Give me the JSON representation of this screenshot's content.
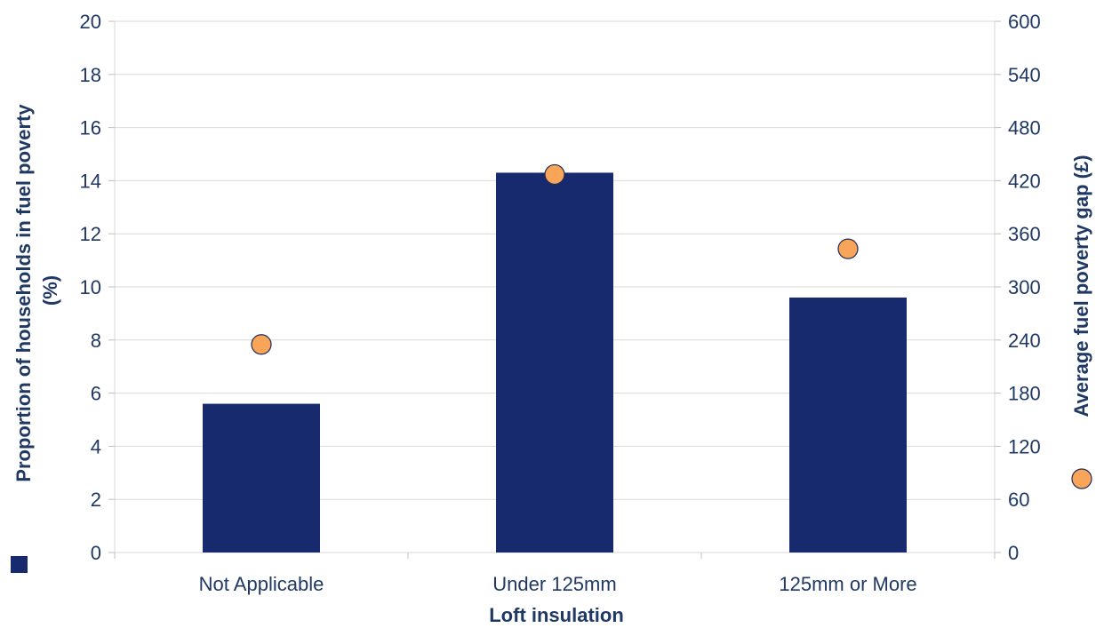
{
  "chart_data": {
    "type": "bar",
    "categories": [
      "Not Applicable",
      "Under 125mm",
      "125mm or More"
    ],
    "series": [
      {
        "values": [
          5.6,
          14.3,
          9.6
        ],
        "axis": "left",
        "kind": "bar",
        "color": "#172a6e"
      },
      {
        "values": [
          235,
          427,
          343
        ],
        "axis": "right",
        "kind": "scatter",
        "color": "#f8a55a"
      }
    ],
    "xlabel": "Loft insulation",
    "ylabel_left": [
      "Proportion of households in fuel poverty",
      "(%)"
    ],
    "ylabel_right": "Average fuel poverty gap (£)",
    "ylim_left": [
      0,
      20
    ],
    "ylim_right": [
      0,
      600
    ],
    "yticks_left": [
      0,
      2,
      4,
      6,
      8,
      10,
      12,
      14,
      16,
      18,
      20
    ],
    "yticks_right": [
      0,
      60,
      120,
      180,
      240,
      300,
      360,
      420,
      480,
      540,
      600
    ],
    "grid": "horizontal",
    "legend": "axis-title markers"
  }
}
